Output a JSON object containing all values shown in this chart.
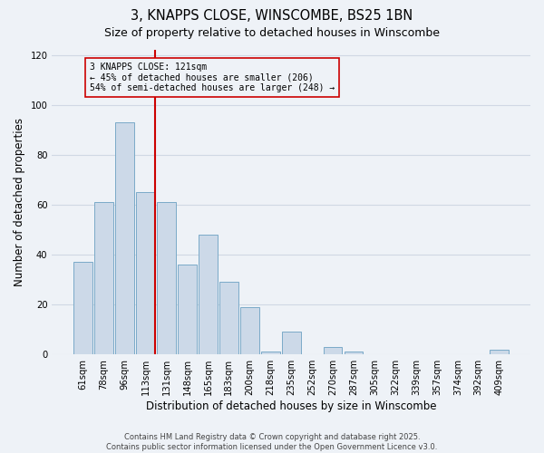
{
  "title": "3, KNAPPS CLOSE, WINSCOMBE, BS25 1BN",
  "subtitle": "Size of property relative to detached houses in Winscombe",
  "xlabel": "Distribution of detached houses by size in Winscombe",
  "ylabel": "Number of detached properties",
  "bar_color": "#ccd9e8",
  "bar_edge_color": "#7aaac8",
  "categories": [
    "61sqm",
    "78sqm",
    "96sqm",
    "113sqm",
    "131sqm",
    "148sqm",
    "165sqm",
    "183sqm",
    "200sqm",
    "218sqm",
    "235sqm",
    "252sqm",
    "270sqm",
    "287sqm",
    "305sqm",
    "322sqm",
    "339sqm",
    "357sqm",
    "374sqm",
    "392sqm",
    "409sqm"
  ],
  "values": [
    37,
    61,
    93,
    65,
    61,
    36,
    48,
    29,
    19,
    1,
    9,
    0,
    3,
    1,
    0,
    0,
    0,
    0,
    0,
    0,
    2
  ],
  "vline_color": "#cc0000",
  "annotation_line1": "3 KNAPPS CLOSE: 121sqm",
  "annotation_line2": "← 45% of detached houses are smaller (206)",
  "annotation_line3": "54% of semi-detached houses are larger (248) →",
  "ylim": [
    0,
    122
  ],
  "yticks": [
    0,
    20,
    40,
    60,
    80,
    100,
    120
  ],
  "background_color": "#eef2f7",
  "grid_color": "#d0d8e4",
  "footnote_line1": "Contains HM Land Registry data © Crown copyright and database right 2025.",
  "footnote_line2": "Contains public sector information licensed under the Open Government Licence v3.0."
}
